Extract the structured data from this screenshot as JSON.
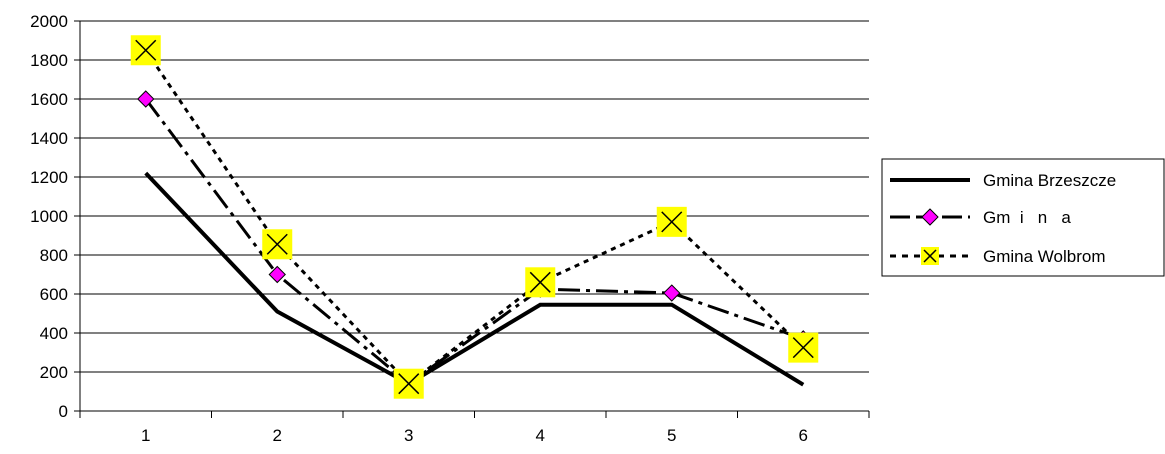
{
  "chart_data": {
    "type": "line",
    "title": "",
    "xlabel": "",
    "ylabel": "",
    "categories": [
      "1",
      "2",
      "3",
      "4",
      "5",
      "6"
    ],
    "ylim": [
      0,
      2000
    ],
    "yticks": [
      0,
      200,
      400,
      600,
      800,
      1000,
      1200,
      1400,
      1600,
      1800,
      2000
    ],
    "grid": "horizontal",
    "legend_position": "right",
    "series": [
      {
        "name": "Gmina Brzeszcze",
        "values": [
          1220,
          510,
          140,
          545,
          545,
          135
        ],
        "color": "#000000",
        "line_style": "solid",
        "marker": "none"
      },
      {
        "name": "Gm  i   n   a",
        "values": [
          1600,
          700,
          140,
          625,
          605,
          370
        ],
        "color": "#000000",
        "line_style": "long-dash",
        "marker": "diamond",
        "marker_color": "#ff00ff"
      },
      {
        "name": "Gmina Wolbrom",
        "values": [
          1850,
          855,
          140,
          660,
          970,
          325
        ],
        "color": "#000000",
        "line_style": "dotted",
        "marker": "x-box",
        "marker_color": "#ffff00"
      }
    ]
  }
}
